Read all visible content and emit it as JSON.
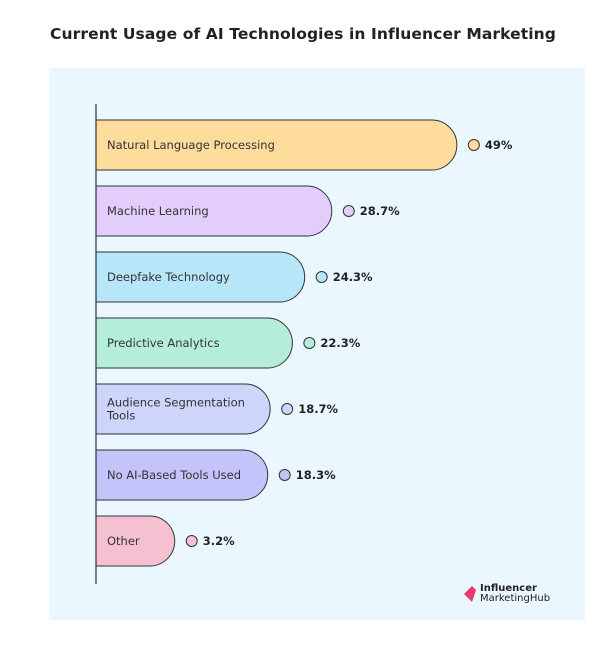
{
  "chart_data": {
    "type": "bar",
    "orientation": "horizontal",
    "title": "Current Usage of AI Technologies in Influencer Marketing",
    "categories": [
      "Natural Language Processing",
      "Machine Learning",
      "Deepfake Technology",
      "Predictive Analytics",
      "Audience Segmentation Tools",
      "No AI-Based Tools Used",
      "Other"
    ],
    "values": [
      49,
      28.7,
      24.3,
      22.3,
      18.7,
      18.3,
      3.2
    ],
    "value_labels": [
      "49%",
      "28.7%",
      "24.3%",
      "22.3%",
      "18.7%",
      "18.3%",
      "3.2%"
    ],
    "colors": [
      "#fddc9c",
      "#e3cdfb",
      "#b6e6f8",
      "#b4eedb",
      "#cdd5fa",
      "#c4c3fa",
      "#f5c1d2"
    ],
    "grid": false,
    "background": "#eaf7fe"
  },
  "logo": {
    "line1": "Influencer",
    "line2": "MarketingHub",
    "color": "#e8386d"
  }
}
